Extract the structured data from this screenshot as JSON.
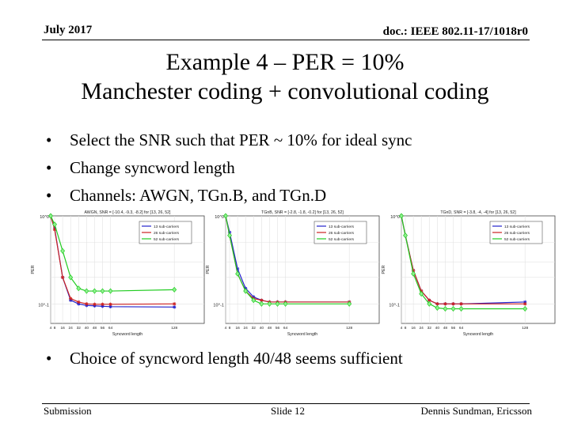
{
  "header": {
    "date": "July 2017",
    "doc": "doc.: IEEE 802.11-17/1018r0"
  },
  "title": {
    "line1": "Example 4 – PER = 10%",
    "line2": "Manchester coding + convolutional coding"
  },
  "bullets": [
    "Select the SNR such that PER ~ 10% for ideal sync",
    "Change syncword length",
    "Channels: AWGN, TGn.B, and TGn.D"
  ],
  "bullet_conclusion": "Choice of syncword length 40/48 seems sufficient",
  "footer": {
    "left": "Submission",
    "center": "Slide 12",
    "right": "Dennis Sundman, Ericsson"
  },
  "chart_data": [
    {
      "type": "line",
      "title": "AWGN, SNR = [-10.4, -9.3, -8.2] for [13, 26, 52]",
      "xlabel": "Syncword length",
      "ylabel": "PER",
      "log_y": true,
      "ylim": [
        0.06,
        1
      ],
      "x": [
        4,
        8,
        16,
        24,
        32,
        40,
        48,
        56,
        64,
        128
      ],
      "xticklabels": [
        "4",
        "8",
        "16",
        "24",
        "32",
        "40",
        "48",
        "56",
        "64",
        "128"
      ],
      "yticklabels": [
        "10^0",
        "10^-1"
      ],
      "series": [
        {
          "name": "13 sub-carriers",
          "color": "#2222cc",
          "marker": "*",
          "values": [
            1.0,
            0.72,
            0.2,
            0.11,
            0.1,
            0.096,
            0.095,
            0.094,
            0.093,
            0.092
          ]
        },
        {
          "name": "26 sub-carriers",
          "color": "#cc2222",
          "marker": "*",
          "values": [
            1.0,
            0.7,
            0.2,
            0.115,
            0.105,
            0.1,
            0.099,
            0.099,
            0.099,
            0.1
          ]
        },
        {
          "name": "52 sub-carriers",
          "color": "#22cc22",
          "marker": "d",
          "values": [
            1.0,
            0.8,
            0.4,
            0.2,
            0.15,
            0.14,
            0.14,
            0.14,
            0.14,
            0.145
          ]
        }
      ],
      "legend": "top-right",
      "grid": true
    },
    {
      "type": "line",
      "title": "TGnB, SNR = [-2.8, -1.8, -0.2] for [13, 26, 52]",
      "xlabel": "Syncword length",
      "ylabel": "PER",
      "log_y": true,
      "ylim": [
        0.06,
        1
      ],
      "x": [
        4,
        8,
        16,
        24,
        32,
        40,
        48,
        56,
        64,
        128
      ],
      "xticklabels": [
        "4",
        "8",
        "16",
        "24",
        "32",
        "40",
        "48",
        "56",
        "64",
        "128"
      ],
      "yticklabels": [
        "10^0",
        "10^-1"
      ],
      "series": [
        {
          "name": "13 sub-carriers",
          "color": "#2222cc",
          "marker": "*",
          "values": [
            1.0,
            0.65,
            0.25,
            0.15,
            0.12,
            0.11,
            0.105,
            0.105,
            0.105,
            0.105
          ]
        },
        {
          "name": "26 sub-carriers",
          "color": "#cc2222",
          "marker": "*",
          "values": [
            1.0,
            0.6,
            0.22,
            0.14,
            0.115,
            0.11,
            0.105,
            0.105,
            0.105,
            0.105
          ]
        },
        {
          "name": "52 sub-carriers",
          "color": "#22cc22",
          "marker": "d",
          "values": [
            1.0,
            0.6,
            0.22,
            0.14,
            0.11,
            0.1,
            0.1,
            0.1,
            0.1,
            0.1
          ]
        }
      ],
      "legend": "top-right",
      "grid": true
    },
    {
      "type": "line",
      "title": "TGnD, SNR = [-3.8, -4, -4] for [13, 26, 52]",
      "xlabel": "Syncword length",
      "ylabel": "PER",
      "log_y": true,
      "ylim": [
        0.06,
        1
      ],
      "x": [
        4,
        8,
        16,
        24,
        32,
        40,
        48,
        56,
        64,
        128
      ],
      "xticklabels": [
        "4",
        "8",
        "16",
        "24",
        "32",
        "40",
        "48",
        "56",
        "64",
        "128"
      ],
      "yticklabels": [
        "10^0",
        "10^-1"
      ],
      "series": [
        {
          "name": "13 sub-carriers",
          "color": "#2222cc",
          "marker": "*",
          "values": [
            1.0,
            0.6,
            0.24,
            0.14,
            0.11,
            0.1,
            0.1,
            0.1,
            0.1,
            0.105
          ]
        },
        {
          "name": "26 sub-carriers",
          "color": "#cc2222",
          "marker": "*",
          "values": [
            1.0,
            0.6,
            0.24,
            0.14,
            0.11,
            0.1,
            0.1,
            0.1,
            0.1,
            0.1
          ]
        },
        {
          "name": "52 sub-carriers",
          "color": "#22cc22",
          "marker": "d",
          "values": [
            1.0,
            0.6,
            0.22,
            0.13,
            0.1,
            0.09,
            0.088,
            0.088,
            0.088,
            0.088
          ]
        }
      ],
      "legend": "top-right",
      "grid": true
    }
  ]
}
